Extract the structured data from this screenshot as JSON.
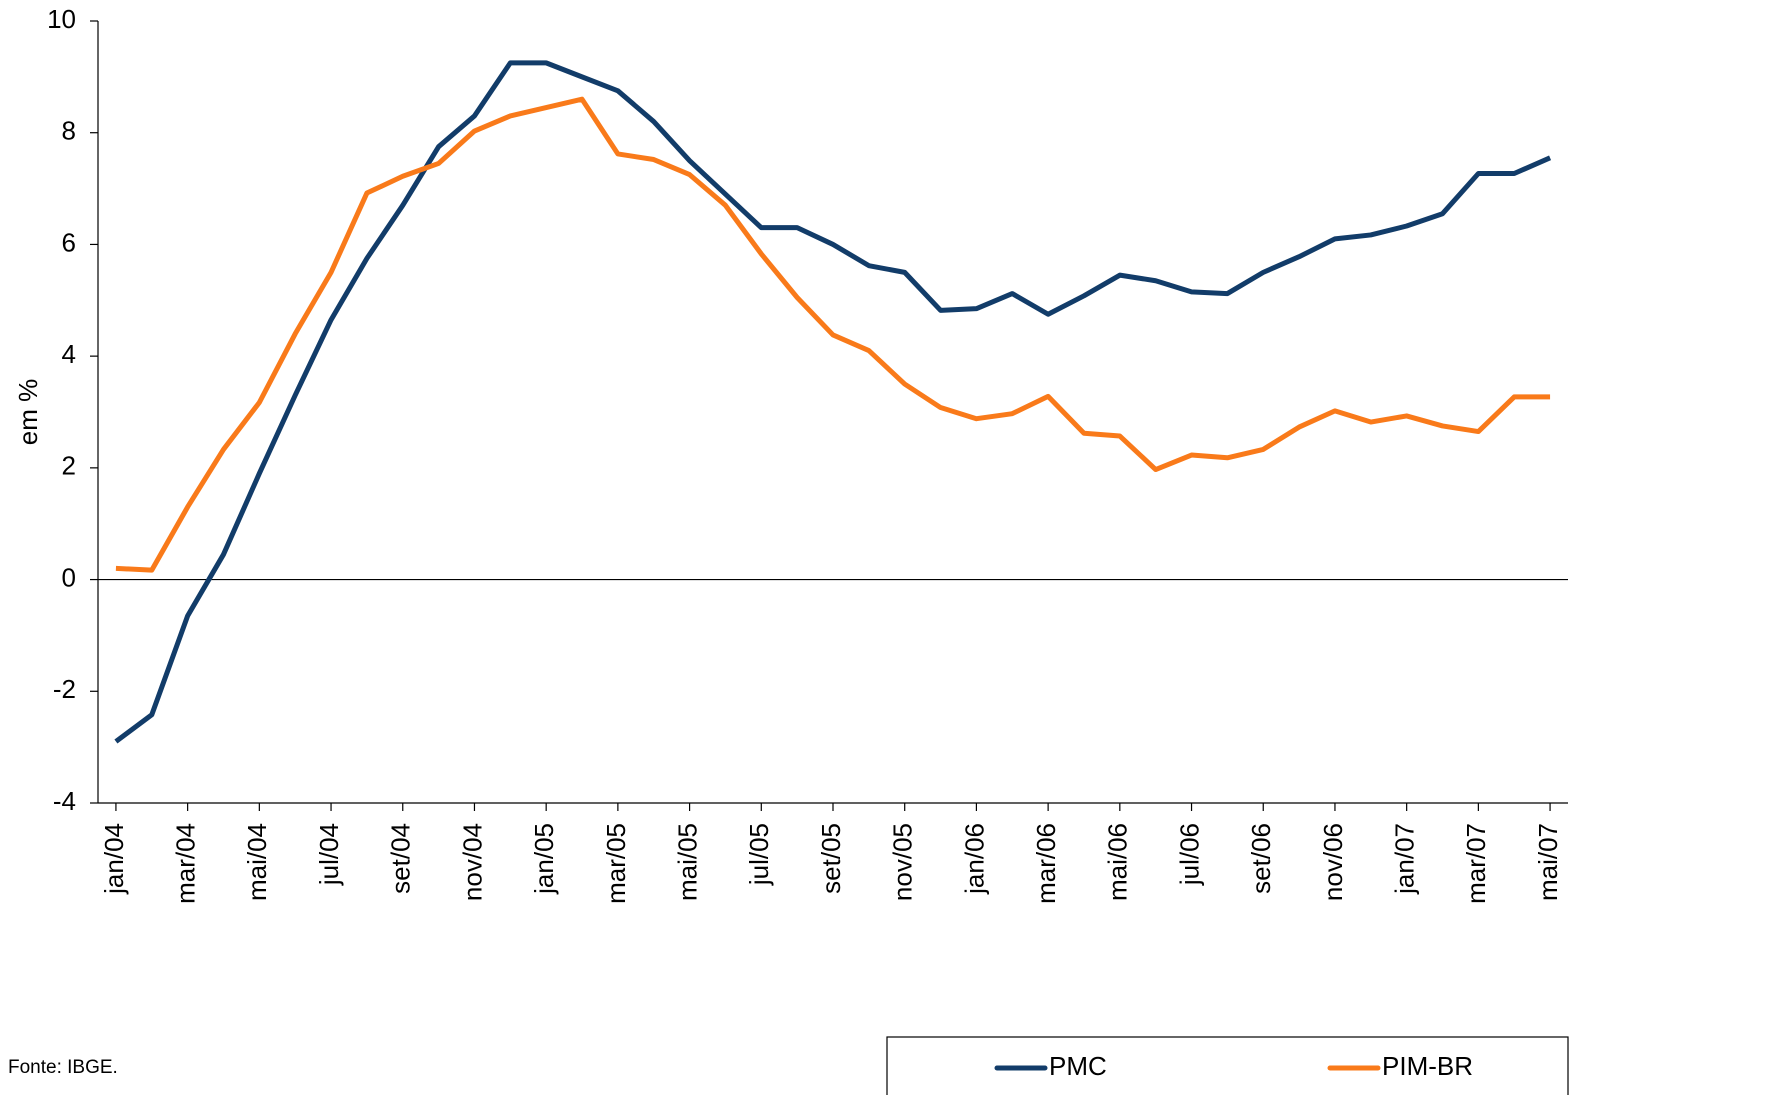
{
  "chart_data": {
    "type": "line",
    "y_label": "em %",
    "source": "Fonte: IBGE.",
    "categories": [
      "jan/04",
      null,
      "mar/04",
      null,
      "mai/04",
      null,
      "jul/04",
      null,
      "set/04",
      null,
      "nov/04",
      null,
      "jan/05",
      null,
      "mar/05",
      null,
      "mai/05",
      null,
      "jul/05",
      null,
      "set/05",
      null,
      "nov/05",
      null,
      "jan/06",
      null,
      "mar/06",
      null,
      "mai/06",
      null,
      "jul/06",
      null,
      "set/06",
      null,
      "nov/06",
      null,
      "jan/07",
      null,
      "mar/07",
      null,
      "mai/07"
    ],
    "series": [
      {
        "name": "PMC",
        "color": "#123c69",
        "values": [
          -2.9,
          -2.42,
          -0.65,
          0.45,
          1.9,
          3.3,
          4.65,
          5.75,
          6.7,
          7.75,
          8.3,
          9.25,
          9.25,
          9.0,
          8.75,
          8.2,
          7.5,
          6.9,
          6.3,
          6.3,
          6.0,
          5.62,
          5.5,
          4.82,
          4.85,
          5.12,
          4.75,
          5.08,
          5.45,
          5.35,
          5.15,
          5.12,
          5.5,
          5.78,
          6.1,
          6.17,
          6.33,
          6.55,
          7.27,
          7.27,
          7.55
        ]
      },
      {
        "name": "PIM-BR",
        "color": "#f97a1a",
        "values": [
          0.2,
          0.17,
          1.3,
          2.33,
          3.17,
          4.4,
          5.5,
          6.92,
          7.22,
          7.45,
          8.03,
          8.3,
          8.45,
          8.6,
          7.62,
          7.52,
          7.25,
          6.7,
          5.83,
          5.05,
          4.38,
          4.1,
          3.5,
          3.08,
          2.88,
          2.97,
          3.28,
          2.62,
          2.57,
          1.97,
          2.23,
          2.18,
          2.33,
          2.73,
          3.02,
          2.82,
          2.93,
          2.75,
          2.65,
          3.27,
          3.27
        ]
      }
    ],
    "ylim": [
      -4,
      10
    ],
    "yticks": [
      -4,
      -2,
      0,
      2,
      4,
      6,
      8,
      10
    ],
    "grid": false,
    "legend": "bottom-right"
  }
}
